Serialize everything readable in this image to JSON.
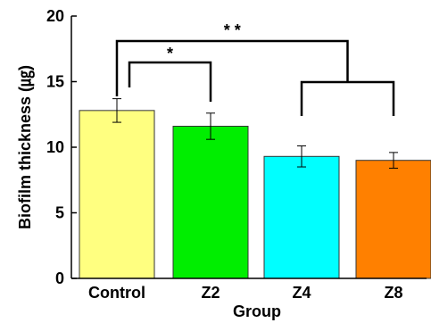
{
  "chart_data": {
    "type": "bar",
    "xlabel": "Group",
    "ylabel": "Biofilm thickness (㎍)",
    "ylim": [
      0,
      20
    ],
    "yticks": [
      0,
      5,
      10,
      15,
      20
    ],
    "categories": [
      "Control",
      "Z2",
      "Z4",
      "Z8"
    ],
    "values": [
      12.8,
      11.6,
      9.3,
      9.0
    ],
    "errors": [
      0.9,
      1.0,
      0.8,
      0.6
    ],
    "colors": [
      "#ffff80",
      "#00ee00",
      "#00ffff",
      "#ff8000"
    ],
    "significance": [
      {
        "label": "*",
        "from": "Control",
        "to": "Z2"
      },
      {
        "label": "* *",
        "from": "Control",
        "to": "Z4 + Z8"
      }
    ]
  }
}
